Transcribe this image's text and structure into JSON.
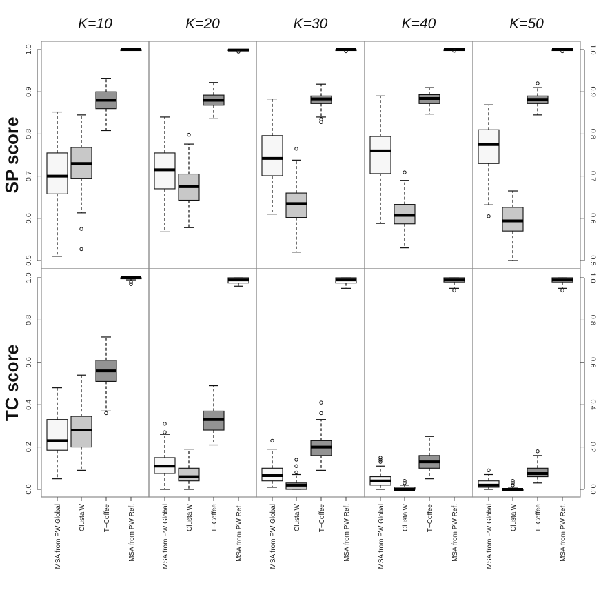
{
  "chart_data": {
    "type": "boxplot",
    "column_titles": [
      "K=10",
      "K=20",
      "K=30",
      "K=40",
      "K=50"
    ],
    "row_titles": [
      "SP score",
      "TC score"
    ],
    "categories": [
      "MSA from PW Global",
      "ClustalW",
      "T−Coffee",
      "MSA from PW Ref."
    ],
    "category_colors": [
      "#f7f7f7",
      "#c8c8c8",
      "#939393",
      "#ffffff"
    ],
    "rows": [
      {
        "name": "SP score",
        "ylim": [
          0.5,
          1.0
        ],
        "yticks": [
          "0.5",
          "0.6",
          "0.7",
          "0.8",
          "0.9",
          "1.0"
        ],
        "panels": [
          {
            "K": "K=10",
            "boxes": [
              {
                "min": 0.51,
                "q1": 0.658,
                "median": 0.7,
                "q3": 0.755,
                "max": 0.852,
                "outliers": []
              },
              {
                "min": 0.613,
                "q1": 0.695,
                "median": 0.73,
                "q3": 0.768,
                "max": 0.845,
                "outliers": [
                  0.575,
                  0.527
                ]
              },
              {
                "min": 0.808,
                "q1": 0.86,
                "median": 0.88,
                "q3": 0.9,
                "max": 0.932,
                "outliers": []
              },
              {
                "min": 0.998,
                "q1": 0.999,
                "median": 1.0,
                "q3": 1.0,
                "max": 1.0,
                "outliers": []
              }
            ]
          },
          {
            "K": "K=20",
            "boxes": [
              {
                "min": 0.568,
                "q1": 0.67,
                "median": 0.715,
                "q3": 0.755,
                "max": 0.84,
                "outliers": []
              },
              {
                "min": 0.578,
                "q1": 0.643,
                "median": 0.675,
                "q3": 0.705,
                "max": 0.776,
                "outliers": [
                  0.798
                ]
              },
              {
                "min": 0.836,
                "q1": 0.868,
                "median": 0.88,
                "q3": 0.892,
                "max": 0.922,
                "outliers": []
              },
              {
                "min": 0.997,
                "q1": 0.998,
                "median": 0.999,
                "q3": 1.0,
                "max": 1.0,
                "outliers": [
                  0.995
                ]
              }
            ]
          },
          {
            "K": "K=30",
            "boxes": [
              {
                "min": 0.61,
                "q1": 0.701,
                "median": 0.742,
                "q3": 0.796,
                "max": 0.883,
                "outliers": []
              },
              {
                "min": 0.52,
                "q1": 0.602,
                "median": 0.635,
                "q3": 0.66,
                "max": 0.738,
                "outliers": [
                  0.765
                ]
              },
              {
                "min": 0.84,
                "q1": 0.872,
                "median": 0.883,
                "q3": 0.89,
                "max": 0.918,
                "outliers": [
                  0.835,
                  0.828
                ]
              },
              {
                "min": 0.998,
                "q1": 0.999,
                "median": 1.0,
                "q3": 1.0,
                "max": 1.0,
                "outliers": [
                  0.996
                ]
              }
            ]
          },
          {
            "K": "K=40",
            "boxes": [
              {
                "min": 0.588,
                "q1": 0.706,
                "median": 0.76,
                "q3": 0.794,
                "max": 0.89,
                "outliers": []
              },
              {
                "min": 0.53,
                "q1": 0.587,
                "median": 0.607,
                "q3": 0.633,
                "max": 0.69,
                "outliers": [
                  0.709
                ]
              },
              {
                "min": 0.847,
                "q1": 0.872,
                "median": 0.884,
                "q3": 0.893,
                "max": 0.91,
                "outliers": []
              },
              {
                "min": 0.998,
                "q1": 0.999,
                "median": 1.0,
                "q3": 1.0,
                "max": 1.0,
                "outliers": [
                  0.997
                ]
              }
            ]
          },
          {
            "K": "K=50",
            "boxes": [
              {
                "min": 0.632,
                "q1": 0.73,
                "median": 0.775,
                "q3": 0.81,
                "max": 0.869,
                "outliers": [
                  0.605
                ]
              },
              {
                "min": 0.5,
                "q1": 0.57,
                "median": 0.594,
                "q3": 0.626,
                "max": 0.665,
                "outliers": []
              },
              {
                "min": 0.845,
                "q1": 0.872,
                "median": 0.882,
                "q3": 0.89,
                "max": 0.91,
                "outliers": [
                  0.92
                ]
              },
              {
                "min": 0.998,
                "q1": 0.999,
                "median": 1.0,
                "q3": 1.0,
                "max": 1.0,
                "outliers": [
                  0.996
                ]
              }
            ]
          }
        ]
      },
      {
        "name": "TC score",
        "ylim": [
          0.0,
          1.0
        ],
        "yticks": [
          "0.0",
          "0.2",
          "0.4",
          "0.6",
          "0.8",
          "1.0"
        ],
        "panels": [
          {
            "K": "K=10",
            "boxes": [
              {
                "min": 0.05,
                "q1": 0.185,
                "median": 0.23,
                "q3": 0.33,
                "max": 0.48,
                "outliers": []
              },
              {
                "min": 0.09,
                "q1": 0.2,
                "median": 0.28,
                "q3": 0.345,
                "max": 0.54,
                "outliers": []
              },
              {
                "min": 0.37,
                "q1": 0.51,
                "median": 0.56,
                "q3": 0.61,
                "max": 0.72,
                "outliers": [
                  0.36
                ]
              },
              {
                "min": 0.99,
                "q1": 0.995,
                "median": 1.0,
                "q3": 1.0,
                "max": 1.0,
                "outliers": [
                  0.98,
                  0.97
                ]
              }
            ]
          },
          {
            "K": "K=20",
            "boxes": [
              {
                "min": 0.0,
                "q1": 0.075,
                "median": 0.11,
                "q3": 0.15,
                "max": 0.26,
                "outliers": [
                  0.27,
                  0.31
                ]
              },
              {
                "min": 0.0,
                "q1": 0.04,
                "median": 0.06,
                "q3": 0.1,
                "max": 0.19,
                "outliers": []
              },
              {
                "min": 0.21,
                "q1": 0.28,
                "median": 0.33,
                "q3": 0.37,
                "max": 0.49,
                "outliers": []
              },
              {
                "min": 0.96,
                "q1": 0.975,
                "median": 0.99,
                "q3": 1.0,
                "max": 1.0,
                "outliers": []
              }
            ]
          },
          {
            "K": "K=30",
            "boxes": [
              {
                "min": 0.01,
                "q1": 0.04,
                "median": 0.065,
                "q3": 0.1,
                "max": 0.19,
                "outliers": [
                  0.23
                ]
              },
              {
                "min": 0.0,
                "q1": 0.0,
                "median": 0.02,
                "q3": 0.03,
                "max": 0.07,
                "outliers": [
                  0.08,
                  0.11,
                  0.14
                ]
              },
              {
                "min": 0.09,
                "q1": 0.16,
                "median": 0.2,
                "q3": 0.23,
                "max": 0.33,
                "outliers": [
                  0.36,
                  0.41
                ]
              },
              {
                "min": 0.95,
                "q1": 0.975,
                "median": 0.99,
                "q3": 1.0,
                "max": 1.0,
                "outliers": []
              }
            ]
          },
          {
            "K": "K=40",
            "boxes": [
              {
                "min": 0.0,
                "q1": 0.02,
                "median": 0.04,
                "q3": 0.06,
                "max": 0.11,
                "outliers": [
                  0.13,
                  0.14,
                  0.15
                ]
              },
              {
                "min": 0.0,
                "q1": 0.0,
                "median": 0.0,
                "q3": 0.01,
                "max": 0.02,
                "outliers": [
                  0.03,
                  0.04
                ]
              },
              {
                "min": 0.05,
                "q1": 0.1,
                "median": 0.13,
                "q3": 0.16,
                "max": 0.25,
                "outliers": []
              },
              {
                "min": 0.95,
                "q1": 0.98,
                "median": 0.99,
                "q3": 1.0,
                "max": 1.0,
                "outliers": [
                  0.94
                ]
              }
            ]
          },
          {
            "K": "K=50",
            "boxes": [
              {
                "min": 0.0,
                "q1": 0.01,
                "median": 0.02,
                "q3": 0.04,
                "max": 0.07,
                "outliers": [
                  0.09
                ]
              },
              {
                "min": 0.0,
                "q1": 0.0,
                "median": 0.0,
                "q3": 0.0,
                "max": 0.01,
                "outliers": [
                  0.02,
                  0.03,
                  0.04
                ]
              },
              {
                "min": 0.03,
                "q1": 0.06,
                "median": 0.075,
                "q3": 0.1,
                "max": 0.16,
                "outliers": [
                  0.18
                ]
              },
              {
                "min": 0.95,
                "q1": 0.98,
                "median": 0.99,
                "q3": 1.0,
                "max": 1.0,
                "outliers": [
                  0.94
                ]
              }
            ]
          }
        ]
      }
    ]
  }
}
